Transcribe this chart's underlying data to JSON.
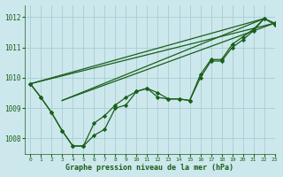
{
  "background_color": "#cce8ec",
  "grid_color": "#aaccd4",
  "line_color": "#1a5e1a",
  "marker_color": "#1a5e1a",
  "title": "Graphe pression niveau de la mer (hPa)",
  "xlim": [
    -0.5,
    23
  ],
  "ylim": [
    1007.5,
    1012.4
  ],
  "yticks": [
    1008,
    1009,
    1010,
    1011,
    1012
  ],
  "xticks": [
    0,
    1,
    2,
    3,
    4,
    5,
    6,
    7,
    8,
    9,
    10,
    11,
    12,
    13,
    14,
    15,
    16,
    17,
    18,
    19,
    20,
    21,
    22,
    23
  ],
  "series_with_markers": [
    {
      "x": [
        0,
        1,
        2,
        3,
        4,
        5,
        6,
        7,
        8,
        9,
        10,
        11,
        12,
        13,
        14,
        15,
        16,
        17,
        18,
        19,
        20,
        21,
        22,
        23
      ],
      "y": [
        1009.8,
        1009.35,
        1008.85,
        1008.25,
        1007.75,
        1007.75,
        1008.1,
        1008.3,
        1009.0,
        1009.1,
        1009.55,
        1009.65,
        1009.35,
        1009.3,
        1009.3,
        1009.25,
        1010.0,
        1010.55,
        1010.55,
        1011.0,
        1011.25,
        1011.55,
        1011.95,
        1011.75
      ]
    },
    {
      "x": [
        0,
        1,
        2,
        3,
        4,
        5,
        6,
        7,
        8,
        9,
        10,
        11,
        12,
        13,
        14,
        15,
        16,
        17,
        18,
        19,
        20,
        21,
        22,
        23
      ],
      "y": [
        1009.8,
        1009.35,
        1008.85,
        1008.25,
        1007.75,
        1007.75,
        1008.5,
        1008.75,
        1009.1,
        1009.35,
        1009.55,
        1009.65,
        1009.5,
        1009.3,
        1009.3,
        1009.25,
        1010.1,
        1010.6,
        1010.6,
        1011.1,
        1011.35,
        1011.6,
        1011.95,
        1011.8
      ]
    }
  ],
  "series_lines": [
    {
      "x": [
        0,
        22
      ],
      "y": [
        1009.8,
        1011.95
      ]
    },
    {
      "x": [
        0,
        23
      ],
      "y": [
        1009.8,
        1011.8
      ]
    },
    {
      "x": [
        3,
        22
      ],
      "y": [
        1009.25,
        1011.95
      ]
    },
    {
      "x": [
        3,
        23
      ],
      "y": [
        1009.25,
        1011.8
      ]
    }
  ]
}
